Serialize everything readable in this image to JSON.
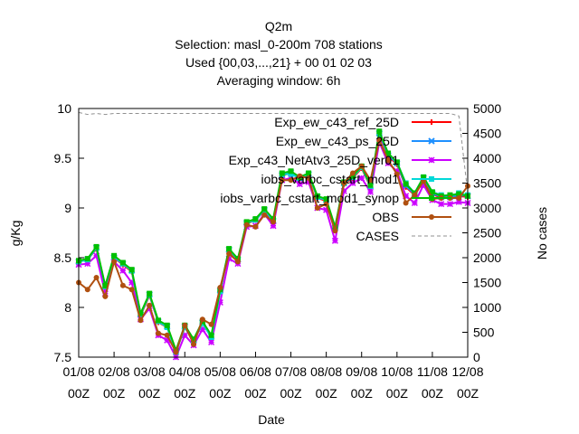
{
  "chart_data": {
    "type": "line",
    "title_lines": [
      "Q2m",
      "Selection: masl_0-200m    708 stations",
      "Used {00,03,...,21} + 00 01 02 03",
      "Averaging window:  6h"
    ],
    "xlabel": "Date",
    "ylabel": "g/Kg",
    "y2label": "No cases",
    "ylim": [
      7.5,
      10.0
    ],
    "y_ticks": [
      "7.5",
      "8",
      "8.5",
      "9",
      "9.5",
      "10"
    ],
    "y2lim": [
      0,
      5000
    ],
    "y2_ticks": [
      "0",
      "500",
      "1000",
      "1500",
      "2000",
      "2500",
      "3000",
      "3500",
      "4000",
      "4500",
      "5000"
    ],
    "x_tick_dates": [
      "01/08",
      "02/08",
      "03/08",
      "04/08",
      "05/08",
      "06/08",
      "07/08",
      "08/08",
      "09/08",
      "10/08",
      "11/08",
      "12/08"
    ],
    "x_tick_time": "00Z",
    "x_days": [
      0,
      0.25,
      0.5,
      0.75,
      1,
      1.25,
      1.5,
      1.75,
      2,
      2.25,
      2.5,
      2.75,
      3,
      3.25,
      3.5,
      3.75,
      4,
      4.25,
      4.5,
      4.75,
      5,
      5.25,
      5.5,
      5.75,
      6,
      6.25,
      6.5,
      6.75,
      7,
      7.25,
      7.5,
      7.75,
      8,
      8.25,
      8.5,
      8.75,
      9,
      9.25,
      9.5,
      9.75,
      10,
      10.25,
      10.5,
      10.75,
      11
    ],
    "series": [
      {
        "name": "Exp_ew_c43_ref_25D",
        "color": "#ff0000",
        "marker": "plus",
        "values": [
          8.46,
          8.48,
          8.59,
          8.2,
          8.5,
          8.43,
          8.36,
          7.92,
          8.12,
          7.85,
          7.8,
          7.55,
          7.8,
          7.66,
          7.84,
          7.7,
          8.16,
          8.57,
          8.47,
          8.84,
          8.88,
          8.97,
          8.86,
          9.32,
          9.36,
          9.29,
          9.33,
          9.1,
          9.07,
          8.79,
          9.24,
          9.3,
          9.4,
          9.21,
          9.74,
          9.52,
          9.44,
          9.21,
          9.13,
          9.29,
          9.14,
          9.1,
          9.1,
          9.12,
          9.11
        ]
      },
      {
        "name": "Exp_ew_c43_ps_25D",
        "color": "#1e90ff",
        "marker": "x",
        "values": [
          8.46,
          8.48,
          8.6,
          8.21,
          8.5,
          8.44,
          8.37,
          7.93,
          8.13,
          7.86,
          7.81,
          7.56,
          7.81,
          7.67,
          7.85,
          7.71,
          8.17,
          8.58,
          8.48,
          8.85,
          8.88,
          8.98,
          8.87,
          9.33,
          9.36,
          9.3,
          9.34,
          9.11,
          9.08,
          8.8,
          9.25,
          9.31,
          9.41,
          9.22,
          9.75,
          9.53,
          9.45,
          9.22,
          9.14,
          9.3,
          9.15,
          9.11,
          9.11,
          9.13,
          9.12
        ]
      },
      {
        "name": "Exp_c43_NetAtv3_25D_ver01",
        "color": "#cc00ff",
        "marker": "star",
        "values": [
          8.43,
          8.44,
          8.52,
          8.14,
          8.46,
          8.37,
          8.25,
          7.88,
          7.99,
          7.72,
          7.67,
          7.5,
          7.72,
          7.62,
          7.78,
          7.65,
          8.05,
          8.49,
          8.44,
          8.81,
          8.82,
          8.94,
          8.82,
          9.28,
          9.3,
          9.24,
          9.26,
          9.0,
          8.98,
          8.67,
          9.17,
          9.25,
          9.3,
          9.16,
          9.66,
          9.45,
          9.37,
          9.12,
          9.05,
          9.23,
          9.08,
          9.04,
          9.04,
          9.06,
          9.05
        ]
      },
      {
        "name": "iobs_varbc_cstart_mod1",
        "color": "#00d8d8",
        "marker": "square",
        "values": [
          8.46,
          8.48,
          8.6,
          8.21,
          8.51,
          8.44,
          8.37,
          7.93,
          8.13,
          7.86,
          7.8,
          7.55,
          7.8,
          7.66,
          7.84,
          7.7,
          8.16,
          8.58,
          8.48,
          8.85,
          8.88,
          8.98,
          8.88,
          9.34,
          9.34,
          9.3,
          9.34,
          9.11,
          9.08,
          8.8,
          9.25,
          9.31,
          9.41,
          9.22,
          9.76,
          9.55,
          9.46,
          9.25,
          9.15,
          9.31,
          9.16,
          9.13,
          9.12,
          9.15,
          9.13
        ]
      },
      {
        "name": "iobs_varbc_cstart_mod1_synop",
        "color": "#00c000",
        "marker": "square",
        "values": [
          8.47,
          8.49,
          8.61,
          8.22,
          8.52,
          8.45,
          8.38,
          7.94,
          8.14,
          7.87,
          7.82,
          7.57,
          7.82,
          7.68,
          7.86,
          7.72,
          8.18,
          8.59,
          8.49,
          8.86,
          8.89,
          8.99,
          8.89,
          9.35,
          9.37,
          9.31,
          9.35,
          9.12,
          9.09,
          8.81,
          9.26,
          9.32,
          9.42,
          9.23,
          9.77,
          9.55,
          9.46,
          9.24,
          9.15,
          9.31,
          9.16,
          9.12,
          9.13,
          9.14,
          9.12
        ]
      },
      {
        "name": "OBS",
        "color": "#b05010",
        "marker": "circle",
        "values": [
          8.25,
          8.18,
          8.3,
          8.11,
          8.46,
          8.22,
          8.18,
          7.87,
          8.02,
          7.74,
          7.72,
          7.55,
          7.82,
          7.63,
          7.88,
          7.83,
          8.2,
          8.54,
          8.46,
          8.83,
          8.81,
          8.93,
          8.86,
          9.28,
          9.28,
          9.32,
          9.3,
          9.0,
          9.04,
          8.77,
          9.25,
          9.35,
          9.42,
          9.28,
          9.68,
          9.48,
          9.34,
          9.05,
          9.13,
          9.27,
          9.09,
          9.1,
          9.1,
          9.1,
          9.22
        ]
      }
    ],
    "cases": {
      "name": "CASES",
      "color": "#909090",
      "x": [
        0,
        0.25,
        0.5,
        0.75,
        1,
        2,
        3,
        4,
        5,
        6,
        7,
        8,
        9,
        10,
        10.5,
        10.75,
        11
      ],
      "values": [
        4920,
        4880,
        4900,
        4880,
        4900,
        4900,
        4900,
        4900,
        4900,
        4900,
        4900,
        4900,
        4900,
        4900,
        4900,
        4850,
        3300
      ]
    },
    "grid": false,
    "legend_placement": "top-right"
  }
}
